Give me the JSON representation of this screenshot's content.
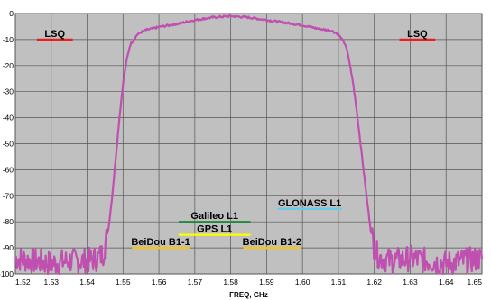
{
  "chart_data": {
    "type": "line",
    "xlabel": "FREQ, GHz",
    "ylabel": "",
    "xlim": [
      1.52,
      1.65
    ],
    "ylim": [
      -100,
      0
    ],
    "x_ticks": [
      1.52,
      1.53,
      1.54,
      1.55,
      1.56,
      1.57,
      1.58,
      1.59,
      1.6,
      1.61,
      1.62,
      1.63,
      1.64,
      1.65
    ],
    "x_tick_labels": [
      "1.52",
      "1.53",
      "1.54",
      "1.55",
      "1.56",
      "1.57",
      "1.58",
      "1.59",
      "1.60",
      "1.61",
      "1.62",
      "1.63",
      "1.64",
      "1.65"
    ],
    "y_ticks": [
      0,
      -10,
      -20,
      -30,
      -40,
      -50,
      -60,
      -70,
      -80,
      -90,
      -100
    ],
    "y_tick_labels": [
      "0",
      "-10",
      "-20",
      "-30",
      "-40",
      "-50",
      "-60",
      "-70",
      "-80",
      "-90",
      "-100"
    ],
    "grid": true,
    "background_color": "#c0c0c0",
    "series": [
      {
        "color": "#c050b0",
        "x": [
          1.52,
          1.525,
          1.53,
          1.535,
          1.54,
          1.543,
          1.5445,
          1.546,
          1.547,
          1.548,
          1.549,
          1.55,
          1.551,
          1.552,
          1.554,
          1.556,
          1.56,
          1.565,
          1.57,
          1.575,
          1.58,
          1.585,
          1.59,
          1.595,
          1.6,
          1.605,
          1.608,
          1.61,
          1.612,
          1.613,
          1.614,
          1.615,
          1.616,
          1.617,
          1.618,
          1.619,
          1.62,
          1.621,
          1.622,
          1.625,
          1.63,
          1.635,
          1.64,
          1.645,
          1.65
        ],
        "y": [
          -94,
          -95,
          -96,
          -95,
          -95,
          -94,
          -92,
          -82,
          -70,
          -55,
          -40,
          -27,
          -18,
          -12,
          -8,
          -6.5,
          -5.2,
          -4,
          -2.5,
          -1.5,
          -1,
          -1.5,
          -2.5,
          -3.5,
          -4.5,
          -6,
          -6.5,
          -8,
          -12,
          -18,
          -26,
          -36,
          -48,
          -60,
          -72,
          -83,
          -90,
          -93,
          -94,
          -95,
          -94,
          -95,
          -96,
          -95,
          -94
        ]
      }
    ],
    "annotations": [
      {
        "label": "LSQ",
        "x_start": 1.526,
        "x_end": 1.536,
        "y": -10,
        "color": "#ee1c1c"
      },
      {
        "label": "LSQ",
        "x_start": 1.627,
        "x_end": 1.637,
        "y": -10,
        "color": "#ee1c1c"
      },
      {
        "label": "Galileo L1",
        "x_start": 1.5655,
        "x_end": 1.5855,
        "y": -80,
        "color": "#1e8a3c"
      },
      {
        "label": "GPS L1",
        "x_start": 1.5655,
        "x_end": 1.5855,
        "y": -85,
        "color": "#ffff00"
      },
      {
        "label": "BeiDou B1-1",
        "x_start": 1.5525,
        "x_end": 1.5685,
        "y": -90,
        "color": "#f5c518"
      },
      {
        "label": "BeiDou B1-2",
        "x_start": 1.5835,
        "x_end": 1.5995,
        "y": -90,
        "color": "#f5c518"
      },
      {
        "label": "GLONASS L1",
        "x_start": 1.593,
        "x_end": 1.611,
        "y": -75,
        "color": "#66ccee"
      }
    ]
  }
}
